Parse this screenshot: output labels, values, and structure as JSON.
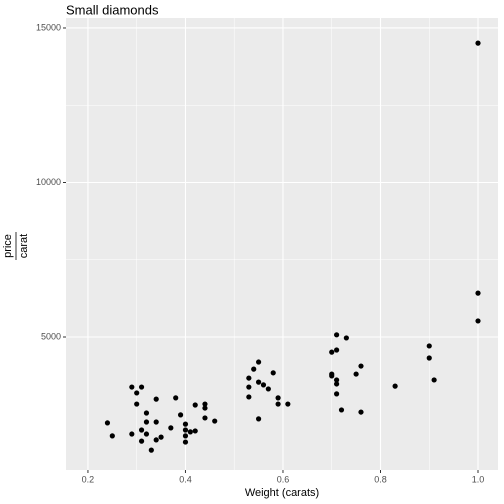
{
  "chart_data": {
    "type": "scatter",
    "title": "Small diamonds",
    "x_label": "Weight (carats)",
    "y_label_numerator": "price",
    "y_label_denominator": "carat",
    "color": "#000000",
    "grid": true,
    "xlim": [
      0.155,
      1.041
    ],
    "ylim": [
      696,
      15323
    ],
    "xticks": [
      0.2,
      0.4,
      0.6,
      0.8,
      {
        "value": 1.0,
        "label": "1.0"
      }
    ],
    "yticks": [
      5000,
      10000,
      15000
    ],
    "x": [
      0.24,
      0.25,
      0.29,
      0.31,
      0.3,
      0.3,
      0.29,
      0.31,
      0.31,
      0.32,
      0.32,
      0.32,
      0.33,
      0.34,
      0.34,
      0.34,
      0.35,
      0.37,
      0.38,
      0.39,
      0.4,
      0.4,
      0.4,
      0.4,
      0.41,
      0.42,
      0.42,
      0.44,
      0.44,
      0.44,
      0.46,
      0.53,
      0.53,
      0.53,
      0.54,
      0.55,
      0.55,
      0.55,
      0.56,
      0.57,
      0.58,
      0.59,
      0.59,
      0.61,
      0.7,
      0.71,
      0.71,
      0.73,
      0.7,
      0.7,
      0.71,
      0.71,
      0.71,
      0.72,
      0.75,
      0.76,
      0.76,
      0.83,
      0.9,
      0.9,
      0.91,
      1.0,
      1.0,
      1.0
    ],
    "y": [
      2220,
      1800,
      3380,
      3380,
      3190,
      2830,
      1860,
      1630,
      1990,
      2540,
      2250,
      1860,
      1340,
      2990,
      2250,
      1670,
      1760,
      2060,
      3030,
      2480,
      2180,
      1990,
      1800,
      1600,
      1930,
      2800,
      1960,
      2830,
      2700,
      2380,
      2280,
      3670,
      3380,
      3060,
      3960,
      4190,
      3540,
      2350,
      3450,
      3320,
      3840,
      3030,
      2830,
      2830,
      4510,
      5070,
      4580,
      4970,
      3740,
      3800,
      3610,
      3480,
      3160,
      2640,
      3800,
      4060,
      2570,
      3410,
      4710,
      4320,
      3610,
      14510,
      6420,
      5520
    ]
  }
}
